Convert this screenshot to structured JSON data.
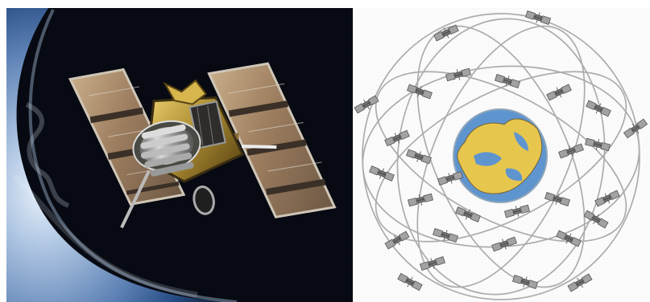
{
  "scene": {
    "left_image": {
      "subject": "satellite-over-earth",
      "colors": {
        "space": "#070a12",
        "earth_blue": "#4d6f9b",
        "earth_light": "#bfd2e7",
        "panel_gold": "#a98a66",
        "gold_body": "#b79b3b",
        "silver": "#d7d7d7"
      }
    },
    "right_image": {
      "subject": "satellite-constellation-orbit-diagram",
      "colors": {
        "background": "#fbfbfb",
        "orbit_lines": "#a8a8a8",
        "ocean": "#5f95cf",
        "land": "#e7c64e",
        "satellite_gray": "#8c8c8c"
      }
    }
  }
}
